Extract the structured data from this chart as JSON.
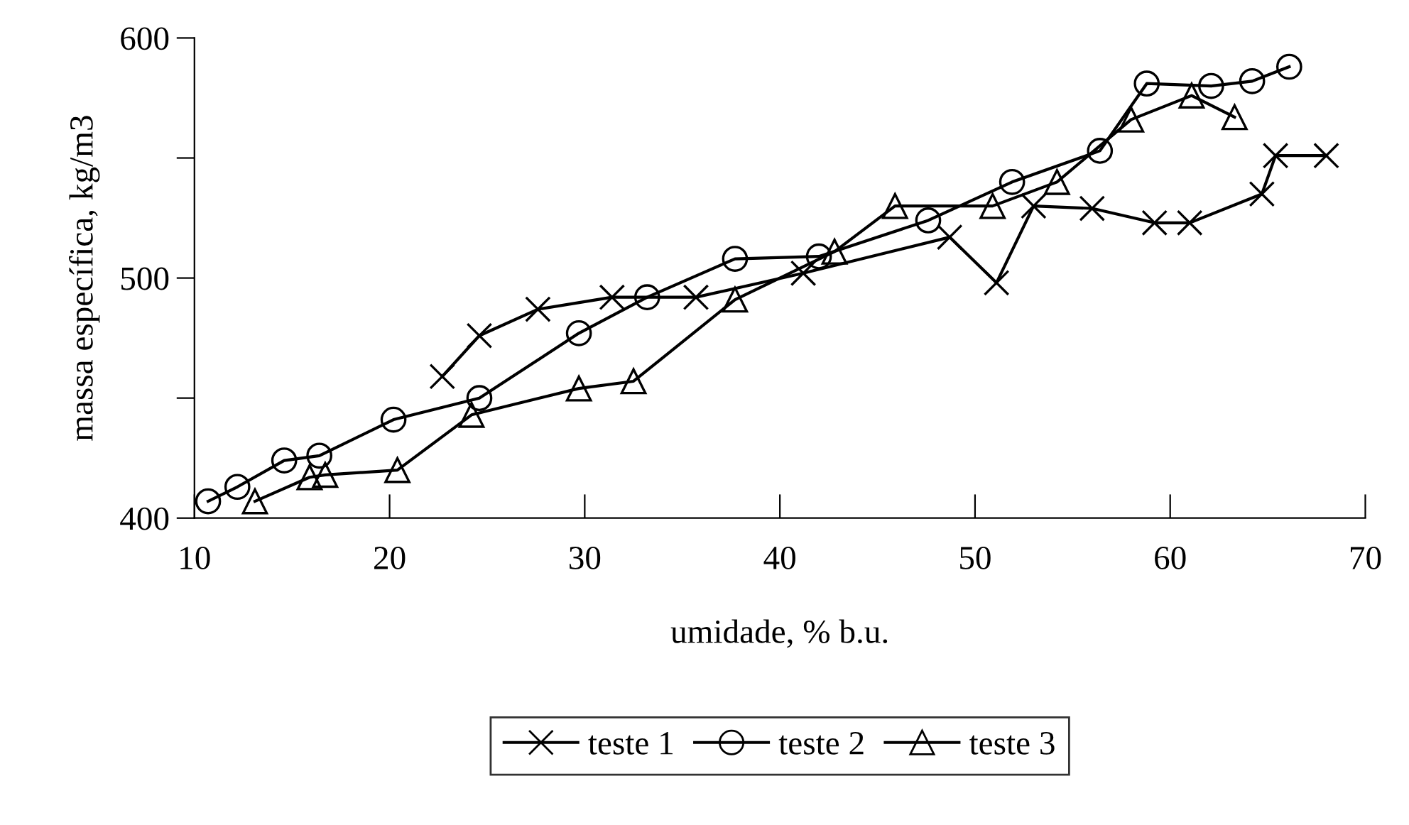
{
  "chart_data": {
    "type": "line",
    "xlabel": "umidade, % b.u.",
    "ylabel": "massa específica, kg/m3",
    "xlim": [
      10,
      70
    ],
    "xticks": [
      10,
      20,
      30,
      40,
      50,
      60,
      70
    ],
    "ylim": [
      400,
      600
    ],
    "yticks": [
      400,
      {
        "value": 450,
        "label": null
      },
      500,
      {
        "value": 550,
        "label": null
      },
      600
    ],
    "grid": false,
    "legend": "bottom",
    "line_style": "solid",
    "series": [
      {
        "name": "teste 1",
        "color": "#000000",
        "marker": "cross",
        "x": [
          22.7,
          24.6,
          27.6,
          31.4,
          35.7,
          41.2,
          48.7,
          51.1,
          53.0,
          56.0,
          59.2,
          61.0,
          64.7,
          65.4,
          68.0
        ],
        "values": [
          459,
          476,
          487,
          492,
          492,
          502,
          517,
          498,
          530,
          529,
          523,
          523,
          535,
          551,
          551
        ]
      },
      {
        "name": "teste 2",
        "color": "#000000",
        "marker": "circle",
        "x": [
          10.7,
          12.2,
          14.6,
          16.4,
          20.2,
          24.6,
          29.7,
          33.2,
          37.7,
          42.0,
          47.6,
          51.9,
          56.4,
          58.8,
          62.1,
          64.2,
          66.1
        ],
        "values": [
          407,
          413,
          424,
          426,
          441,
          450,
          477,
          492,
          508,
          509,
          524,
          540,
          553,
          581,
          580,
          582,
          588
        ]
      },
      {
        "name": "teste 3",
        "color": "#000000",
        "marker": "triangle",
        "x": [
          13.1,
          15.9,
          16.7,
          20.4,
          24.2,
          29.7,
          32.5,
          37.7,
          42.8,
          45.9,
          50.9,
          54.2,
          58.0,
          61.1,
          63.3
        ],
        "values": [
          407,
          417,
          418,
          420,
          443,
          454,
          457,
          491,
          511,
          530,
          530,
          540,
          566,
          576,
          567
        ]
      }
    ]
  }
}
